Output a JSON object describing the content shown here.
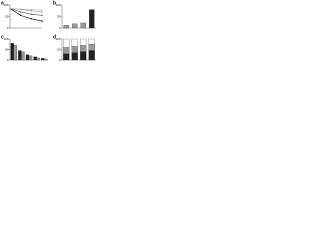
{
  "chart_data": [
    {
      "type": "line",
      "panel": "a",
      "x": [
        0,
        1,
        2,
        3
      ],
      "series": [
        {
          "color": "#000000",
          "values": [
            85,
            55,
            40,
            30
          ]
        },
        {
          "color": "#555555",
          "values": [
            85,
            70,
            60,
            55
          ]
        },
        {
          "color": "#888888",
          "values": [
            85,
            80,
            75,
            70
          ]
        },
        {
          "color": "#bbbbbb",
          "values": [
            85,
            82,
            80,
            78
          ]
        }
      ],
      "xlim": [
        0,
        3
      ],
      "ylim": [
        0,
        100
      ],
      "yticks": [
        0,
        50,
        100
      ]
    },
    {
      "type": "bar",
      "panel": "b",
      "categories": [
        null,
        null,
        null,
        null
      ],
      "values": [
        12,
        18,
        22,
        80
      ],
      "colors": [
        "#999999",
        "#999999",
        "#999999",
        "#222222"
      ],
      "ylim": [
        0,
        100
      ],
      "yticks": [
        0,
        50,
        100
      ]
    },
    {
      "type": "grouped",
      "panel": "c",
      "categories": [
        null,
        null,
        null,
        null,
        null
      ],
      "series": [
        {
          "color": "#222222",
          "values": [
            80,
            45,
            25,
            15,
            8
          ]
        },
        {
          "color": "#999999",
          "values": [
            70,
            40,
            20,
            10,
            5
          ]
        }
      ],
      "ylim": [
        0,
        100
      ],
      "yticks": [
        0,
        50,
        100
      ]
    },
    {
      "type": "stacked",
      "panel": "d",
      "categories": [
        null,
        null,
        null,
        null
      ],
      "series": [
        {
          "color": "#222222",
          "values": [
            30,
            35,
            40,
            45
          ]
        },
        {
          "color": "#999999",
          "values": [
            30,
            30,
            30,
            30
          ]
        },
        {
          "color": "#ffffff",
          "values": [
            40,
            35,
            30,
            25
          ]
        }
      ],
      "ylim": [
        0,
        100
      ],
      "yticks": [
        0,
        50,
        100
      ]
    }
  ]
}
